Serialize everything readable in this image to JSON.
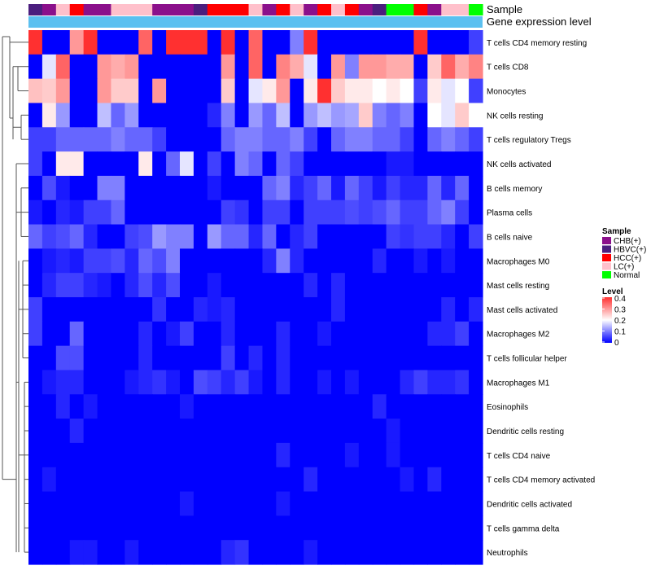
{
  "chart_data": {
    "type": "heatmap",
    "annotation_labels": [
      "Sample",
      "Gene expression level"
    ],
    "rows": [
      "T cells CD4 memory resting",
      "T cells CD8",
      "Monocytes",
      "NK cells resting",
      "T cells regulatory  Tregs",
      "NK cells activated",
      "B cells memory",
      "Plasma cells",
      "B cells naive",
      "Macrophages M0",
      "Mast cells resting",
      "Mast cells activated",
      "Macrophages M2",
      "T cells follicular helper",
      "Macrophages M1",
      "Eosinophils",
      "Dendritic cells resting",
      "T cells CD4 naive",
      "T cells CD4 memory activated",
      "Dendritic cells activated",
      "T cells gamma delta",
      "Neutrophils"
    ],
    "columns": 33,
    "sample_groups": [
      "HBVC(+)",
      "CHB(+)",
      "LC(+)",
      "HCC(+)",
      "CHB(+)",
      "CHB(+)",
      "LC(+)",
      "LC(+)",
      "LC(+)",
      "CHB(+)",
      "CHB(+)",
      "CHB(+)",
      "HBVC(+)",
      "HCC(+)",
      "HCC(+)",
      "HCC(+)",
      "LC(+)",
      "CHB(+)",
      "HCC(+)",
      "LC(+)",
      "CHB(+)",
      "HCC(+)",
      "LC(+)",
      "HCC(+)",
      "CHB(+)",
      "HBVC(+)",
      "Normal",
      "Normal",
      "HCC(+)",
      "CHB(+)",
      "LC(+)",
      "LC(+)",
      "Normal"
    ],
    "values": [
      [
        0.4,
        0.0,
        0.0,
        0.3,
        0.4,
        0.0,
        0.0,
        0.0,
        0.35,
        0.0,
        0.4,
        0.4,
        0.4,
        0.0,
        0.4,
        0.0,
        0.35,
        0.0,
        0.0,
        0.1,
        0.4,
        0.0,
        0.0,
        0.0,
        0.0,
        0.0,
        0.0,
        0.0,
        0.4,
        0.0,
        0.0,
        0.0,
        0.05
      ],
      [
        0.0,
        0.18,
        0.35,
        0.0,
        0.0,
        0.3,
        0.28,
        0.3,
        0.0,
        0.0,
        0.0,
        0.0,
        0.0,
        0.0,
        0.3,
        0.0,
        0.35,
        0.0,
        0.32,
        0.28,
        0.18,
        0.0,
        0.3,
        0.1,
        0.3,
        0.3,
        0.28,
        0.28,
        0.0,
        0.25,
        0.35,
        0.28,
        0.32
      ],
      [
        0.26,
        0.25,
        0.3,
        0.0,
        0.0,
        0.3,
        0.25,
        0.25,
        0.0,
        0.3,
        0.0,
        0.0,
        0.0,
        0.0,
        0.25,
        0.0,
        0.18,
        0.22,
        0.3,
        0.0,
        0.22,
        0.4,
        0.25,
        0.22,
        0.22,
        0.2,
        0.22,
        0.2,
        0.05,
        0.22,
        0.18,
        0.2,
        0.05
      ],
      [
        0.0,
        0.22,
        0.12,
        0.0,
        0.0,
        0.15,
        0.08,
        0.12,
        0.0,
        0.0,
        0.0,
        0.0,
        0.0,
        0.03,
        0.1,
        0.0,
        0.12,
        0.08,
        0.15,
        0.0,
        0.12,
        0.15,
        0.12,
        0.13,
        0.25,
        0.1,
        0.08,
        0.1,
        0.0,
        0.2,
        0.18,
        0.25,
        0.2
      ],
      [
        0.05,
        0.05,
        0.08,
        0.08,
        0.08,
        0.08,
        0.1,
        0.08,
        0.08,
        0.05,
        0.0,
        0.0,
        0.0,
        0.0,
        0.08,
        0.1,
        0.1,
        0.08,
        0.08,
        0.1,
        0.05,
        0.0,
        0.08,
        0.1,
        0.1,
        0.08,
        0.08,
        0.05,
        0.0,
        0.08,
        0.1,
        0.08,
        0.05
      ],
      [
        0.05,
        0.0,
        0.22,
        0.22,
        0.0,
        0.0,
        0.0,
        0.0,
        0.22,
        0.0,
        0.08,
        0.18,
        0.0,
        0.05,
        0.0,
        0.1,
        0.08,
        0.0,
        0.08,
        0.05,
        0.0,
        0.0,
        0.0,
        0.0,
        0.0,
        0.0,
        0.02,
        0.02,
        0.0,
        0.0,
        0.0,
        0.0,
        0.0
      ],
      [
        0.0,
        0.06,
        0.02,
        0.0,
        0.0,
        0.1,
        0.1,
        0.0,
        0.0,
        0.0,
        0.0,
        0.0,
        0.0,
        0.02,
        0.0,
        0.0,
        0.0,
        0.08,
        0.1,
        0.03,
        0.05,
        0.08,
        0.02,
        0.08,
        0.05,
        0.02,
        0.05,
        0.03,
        0.03,
        0.08,
        0.03,
        0.08,
        0.0
      ],
      [
        0.02,
        0.0,
        0.03,
        0.02,
        0.05,
        0.05,
        0.08,
        0.0,
        0.0,
        0.0,
        0.0,
        0.0,
        0.0,
        0.0,
        0.05,
        0.04,
        0.0,
        0.05,
        0.05,
        0.0,
        0.05,
        0.05,
        0.05,
        0.06,
        0.05,
        0.06,
        0.08,
        0.05,
        0.05,
        0.08,
        0.1,
        0.05,
        0.0
      ],
      [
        0.08,
        0.05,
        0.06,
        0.08,
        0.03,
        0.0,
        0.0,
        0.05,
        0.06,
        0.12,
        0.1,
        0.1,
        0.0,
        0.12,
        0.08,
        0.08,
        0.03,
        0.08,
        0.0,
        0.03,
        0.05,
        0.0,
        0.0,
        0.0,
        0.0,
        0.0,
        0.05,
        0.04,
        0.05,
        0.05,
        0.03,
        0.0,
        0.05
      ],
      [
        0.0,
        0.02,
        0.03,
        0.02,
        0.05,
        0.05,
        0.06,
        0.03,
        0.08,
        0.06,
        0.1,
        0.0,
        0.0,
        0.0,
        0.0,
        0.0,
        0.0,
        0.03,
        0.1,
        0.03,
        0.0,
        0.0,
        0.0,
        0.0,
        0.0,
        0.03,
        0.0,
        0.0,
        0.02,
        0.0,
        0.02,
        0.0,
        0.0
      ],
      [
        0.0,
        0.03,
        0.05,
        0.05,
        0.03,
        0.02,
        0.0,
        0.03,
        0.06,
        0.03,
        0.06,
        0.0,
        0.0,
        0.02,
        0.0,
        0.0,
        0.0,
        0.0,
        0.0,
        0.0,
        0.03,
        0.0,
        0.03,
        0.0,
        0.0,
        0.0,
        0.0,
        0.0,
        0.0,
        0.0,
        0.0,
        0.0,
        0.0
      ],
      [
        0.05,
        0.0,
        0.0,
        0.0,
        0.0,
        0.0,
        0.0,
        0.0,
        0.0,
        0.04,
        0.0,
        0.0,
        0.03,
        0.02,
        0.03,
        0.0,
        0.0,
        0.0,
        0.0,
        0.0,
        0.0,
        0.0,
        0.03,
        0.0,
        0.0,
        0.0,
        0.0,
        0.0,
        0.0,
        0.0,
        0.03,
        0.0,
        0.03
      ],
      [
        0.05,
        0.0,
        0.0,
        0.08,
        0.0,
        0.0,
        0.0,
        0.0,
        0.03,
        0.0,
        0.02,
        0.05,
        0.0,
        0.0,
        0.03,
        0.0,
        0.0,
        0.0,
        0.03,
        0.0,
        0.0,
        0.02,
        0.0,
        0.0,
        0.0,
        0.0,
        0.0,
        0.0,
        0.0,
        0.03,
        0.03,
        0.05,
        0.0
      ],
      [
        0.0,
        0.0,
        0.06,
        0.06,
        0.0,
        0.0,
        0.0,
        0.0,
        0.03,
        0.0,
        0.0,
        0.0,
        0.0,
        0.0,
        0.05,
        0.0,
        0.03,
        0.0,
        0.03,
        0.0,
        0.0,
        0.0,
        0.0,
        0.0,
        0.0,
        0.0,
        0.0,
        0.0,
        0.0,
        0.0,
        0.0,
        0.0,
        0.0
      ],
      [
        0.0,
        0.02,
        0.03,
        0.03,
        0.0,
        0.0,
        0.0,
        0.02,
        0.03,
        0.04,
        0.02,
        0.0,
        0.06,
        0.05,
        0.03,
        0.05,
        0.02,
        0.0,
        0.03,
        0.0,
        0.0,
        0.02,
        0.0,
        0.02,
        0.0,
        0.0,
        0.0,
        0.03,
        0.05,
        0.03,
        0.03,
        0.04,
        0.0
      ],
      [
        0.0,
        0.0,
        0.03,
        0.0,
        0.02,
        0.0,
        0.0,
        0.0,
        0.0,
        0.0,
        0.0,
        0.02,
        0.0,
        0.0,
        0.0,
        0.0,
        0.0,
        0.0,
        0.0,
        0.0,
        0.0,
        0.0,
        0.0,
        0.0,
        0.0,
        0.03,
        0.0,
        0.0,
        0.0,
        0.0,
        0.0,
        0.0,
        0.0
      ],
      [
        0.0,
        0.0,
        0.0,
        0.03,
        0.0,
        0.0,
        0.0,
        0.0,
        0.0,
        0.0,
        0.0,
        0.0,
        0.0,
        0.0,
        0.0,
        0.0,
        0.0,
        0.0,
        0.0,
        0.0,
        0.0,
        0.0,
        0.0,
        0.0,
        0.0,
        0.0,
        0.02,
        0.0,
        0.0,
        0.0,
        0.0,
        0.0,
        0.0
      ],
      [
        0.0,
        0.0,
        0.0,
        0.0,
        0.0,
        0.0,
        0.0,
        0.0,
        0.0,
        0.0,
        0.0,
        0.0,
        0.0,
        0.0,
        0.0,
        0.0,
        0.0,
        0.0,
        0.03,
        0.0,
        0.0,
        0.0,
        0.0,
        0.02,
        0.0,
        0.0,
        0.02,
        0.0,
        0.0,
        0.0,
        0.0,
        0.0,
        0.0
      ],
      [
        0.0,
        0.02,
        0.0,
        0.0,
        0.0,
        0.0,
        0.0,
        0.0,
        0.0,
        0.0,
        0.0,
        0.0,
        0.0,
        0.0,
        0.0,
        0.0,
        0.0,
        0.0,
        0.0,
        0.0,
        0.03,
        0.0,
        0.0,
        0.0,
        0.0,
        0.0,
        0.0,
        0.02,
        0.0,
        0.03,
        0.0,
        0.0,
        0.0
      ],
      [
        0.0,
        0.0,
        0.0,
        0.0,
        0.0,
        0.0,
        0.0,
        0.0,
        0.0,
        0.0,
        0.0,
        0.02,
        0.0,
        0.0,
        0.0,
        0.0,
        0.0,
        0.0,
        0.02,
        0.0,
        0.0,
        0.0,
        0.0,
        0.0,
        0.0,
        0.0,
        0.0,
        0.0,
        0.0,
        0.0,
        0.0,
        0.0,
        0.0
      ],
      [
        0.0,
        0.0,
        0.0,
        0.0,
        0.0,
        0.0,
        0.0,
        0.0,
        0.0,
        0.0,
        0.0,
        0.0,
        0.0,
        0.0,
        0.0,
        0.0,
        0.0,
        0.0,
        0.0,
        0.0,
        0.0,
        0.0,
        0.0,
        0.0,
        0.0,
        0.0,
        0.0,
        0.0,
        0.0,
        0.0,
        0.0,
        0.0,
        0.0
      ],
      [
        0.0,
        0.0,
        0.0,
        0.02,
        0.02,
        0.0,
        0.0,
        0.02,
        0.0,
        0.0,
        0.0,
        0.0,
        0.0,
        0.0,
        0.03,
        0.04,
        0.0,
        0.0,
        0.0,
        0.0,
        0.02,
        0.0,
        0.0,
        0.0,
        0.0,
        0.0,
        0.0,
        0.0,
        0.0,
        0.0,
        0.0,
        0.0,
        0.0
      ]
    ],
    "legend_sample": {
      "title": "Sample",
      "entries": [
        {
          "label": "CHB(+)",
          "color": "#8B108B"
        },
        {
          "label": "HBVC(+)",
          "color": "#4B1E7E"
        },
        {
          "label": "HCC(+)",
          "color": "#FF0000"
        },
        {
          "label": "LC(+)",
          "color": "#FFC0CB"
        },
        {
          "label": "Normal",
          "color": "#00FF00"
        }
      ]
    },
    "legend_level": {
      "title": "Level",
      "range": [
        0,
        0.4
      ],
      "ticks": [
        "0.4",
        "0.3",
        "0.2",
        "0.1",
        "0"
      ]
    },
    "expression_bar_color": "#5BC0F0",
    "color_scale": {
      "low": "#0000FF",
      "mid": "#FFFFFF",
      "high": "#FF3030"
    }
  }
}
